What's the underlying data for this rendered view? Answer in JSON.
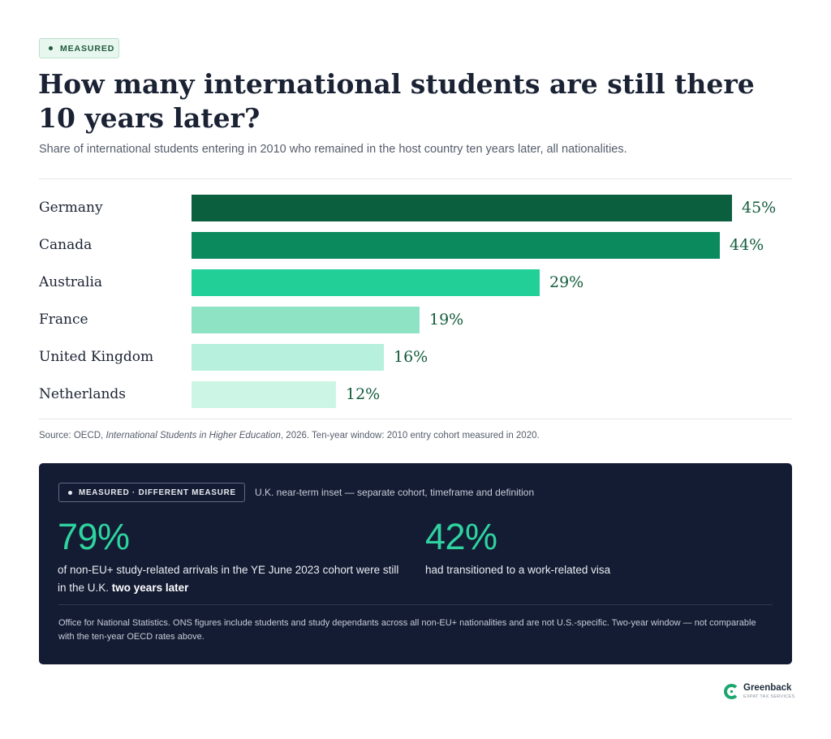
{
  "badge": "MEASURED",
  "title": "How many international students are still there 10 years later?",
  "subtitle": "Share of international students entering in 2010 who remained in the host country ten years later, all nationalities.",
  "chart_data": {
    "type": "bar",
    "orientation": "horizontal",
    "categories": [
      "Germany",
      "Canada",
      "Australia",
      "France",
      "United Kingdom",
      "Netherlands"
    ],
    "values": [
      45,
      44,
      29,
      19,
      16,
      12
    ],
    "value_labels": [
      "45%",
      "44%",
      "29%",
      "19%",
      "16%",
      "12%"
    ],
    "colors": [
      "#0b5e3e",
      "#0b8a5e",
      "#22cf97",
      "#8de3c4",
      "#b7f0dc",
      "#cdf5e6"
    ],
    "xlim": [
      0,
      45
    ],
    "grid": false,
    "legend": "none"
  },
  "source": {
    "prefix": "Source: OECD, ",
    "publication": "International Students in Higher Education",
    "suffix": ", 2026. Ten-year window: 2010 entry cohort measured in 2020."
  },
  "inset": {
    "badge": "MEASURED · DIFFERENT MEASURE",
    "note": "U.K. near-term inset — separate cohort, timeframe and definition",
    "stat1": {
      "number": "79%",
      "text": "of non-EU+ study-related arrivals in the YE June 2023 cohort were still in the U.K. ",
      "bold": "two years later"
    },
    "stat2": {
      "number": "42%",
      "text": "had transitioned to a work-related visa"
    },
    "footnote": "Office for National Statistics. ONS figures include students and study dependants across all non-EU+ nationalities and are not U.S.-specific. Two-year window — not comparable with the ten-year OECD rates above."
  },
  "logo": {
    "name": "Greenback",
    "tagline": "EXPAT TAX SERVICES"
  }
}
